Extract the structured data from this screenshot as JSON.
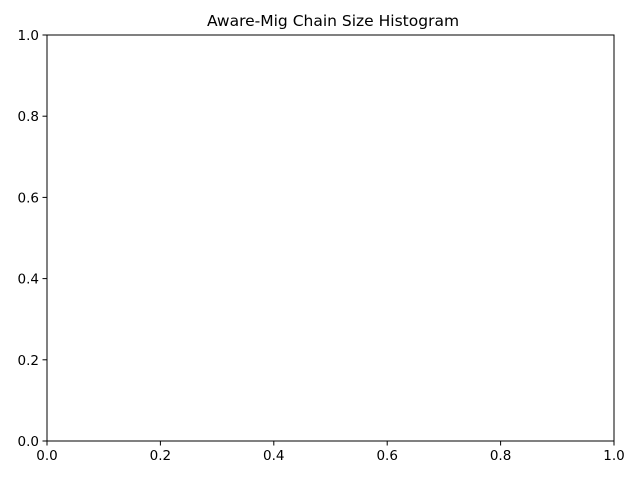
{
  "chart_data": {
    "type": "bar",
    "title": "Aware-Mig Chain Size Histogram",
    "xlabel": "",
    "ylabel": "",
    "xlim": [
      0.0,
      1.0
    ],
    "ylim": [
      0.0,
      1.0
    ],
    "x_ticks": [
      "0.0",
      "0.2",
      "0.4",
      "0.6",
      "0.8",
      "1.0"
    ],
    "y_ticks": [
      "0.0",
      "0.2",
      "0.4",
      "0.6",
      "0.8",
      "1.0"
    ],
    "categories": [],
    "values": [],
    "grid": false,
    "colors": {
      "frame": "#000000",
      "background": "#ffffff",
      "bar": "#1f77b4"
    }
  }
}
